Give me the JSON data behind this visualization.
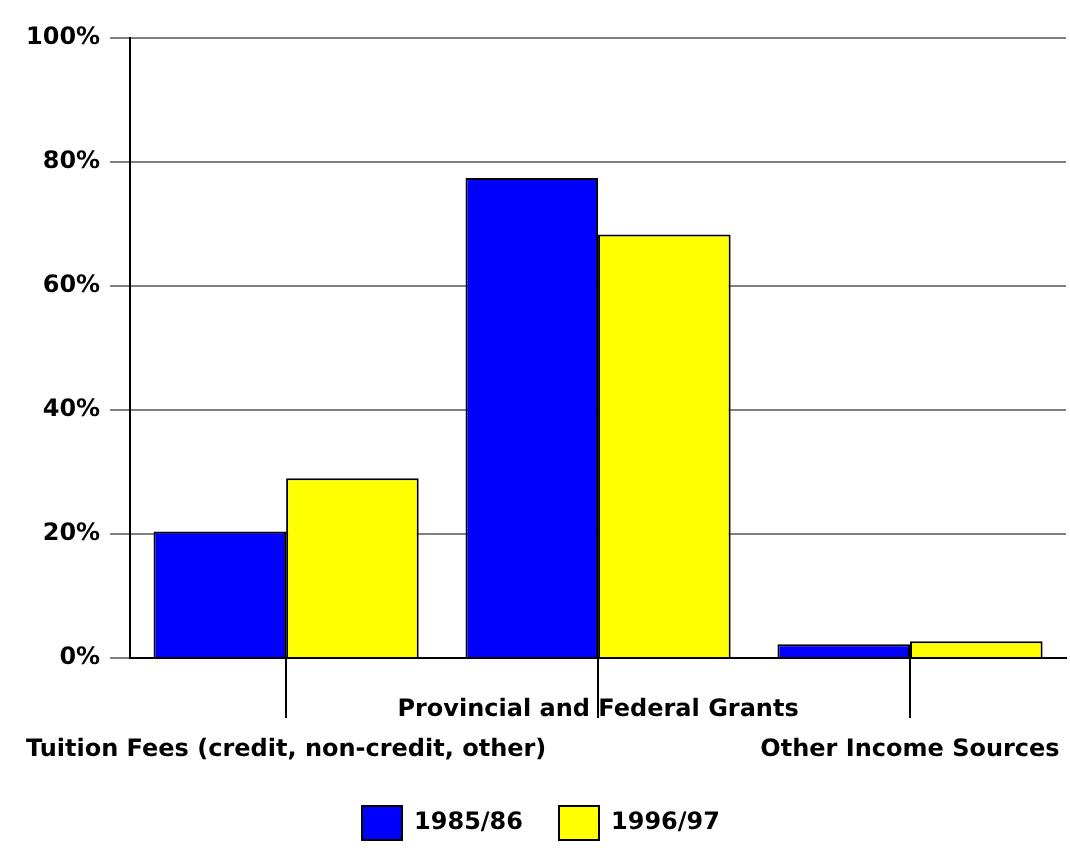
{
  "chart_data": {
    "type": "bar",
    "categories": [
      "Tuition Fees (credit, non-credit, other)",
      "Provincial and Federal Grants",
      "Other Income Sources"
    ],
    "series": [
      {
        "name": "1985/86",
        "color": "#0000ff",
        "values": [
          20.4,
          77.4,
          2.2
        ]
      },
      {
        "name": "1996/97",
        "color": "#ffff00",
        "values": [
          29.0,
          68.3,
          2.7
        ]
      }
    ],
    "ylim": [
      0,
      100
    ],
    "yticks": [
      {
        "value": 0,
        "label": "0%"
      },
      {
        "value": 20,
        "label": "20%"
      },
      {
        "value": 40,
        "label": "40%"
      },
      {
        "value": 60,
        "label": "60%"
      },
      {
        "value": 80,
        "label": "80%"
      },
      {
        "value": 100,
        "label": "100%"
      }
    ],
    "grid": "y",
    "legend": "bottom"
  }
}
